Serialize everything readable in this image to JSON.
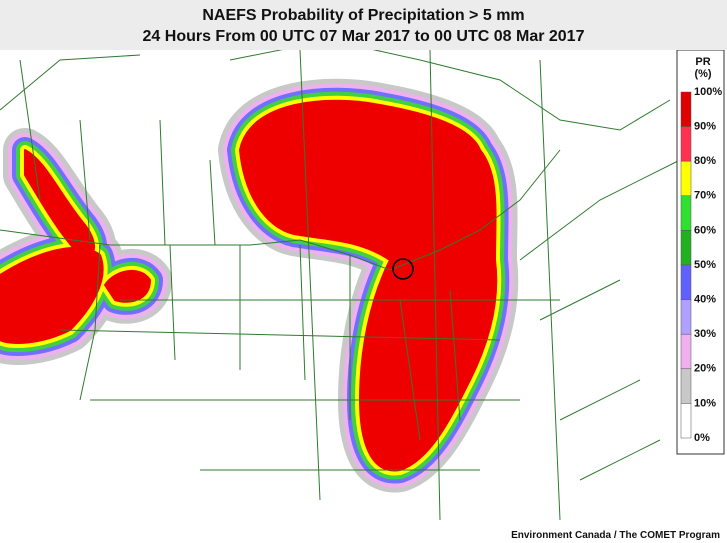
{
  "header": {
    "title": "NAEFS Probability of Precipitation > 5 mm",
    "subtitle": "24 Hours From 00 UTC 07 Mar 2017 to 00 UTC 08 Mar 2017"
  },
  "legend": {
    "title": [
      "PR",
      "(%)"
    ],
    "labels": [
      "100%",
      "90%",
      "80%",
      "70%",
      "60%",
      "50%",
      "40%",
      "30%",
      "20%",
      "10%",
      "0%"
    ]
  },
  "credit": "Environment Canada / The COMET Program"
}
